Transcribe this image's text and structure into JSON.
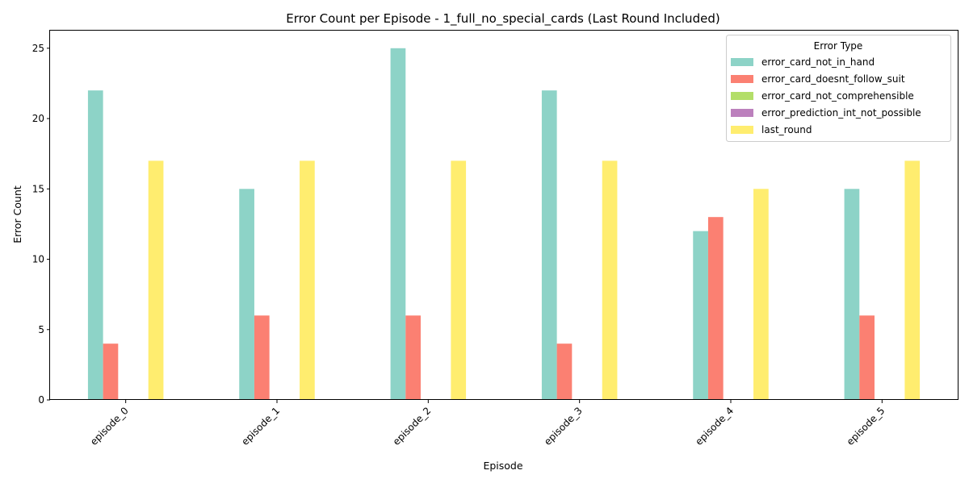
{
  "chart_data": {
    "type": "bar",
    "title": "Error Count per Episode - 1_full_no_special_cards (Last Round Included)",
    "xlabel": "Episode",
    "ylabel": "Error Count",
    "ylim": [
      0,
      26.25
    ],
    "yticks": [
      0,
      5,
      10,
      15,
      20,
      25
    ],
    "grid": false,
    "legend_title": "Error Type",
    "legend_position": "top-right",
    "categories": [
      "episode_0",
      "episode_1",
      "episode_2",
      "episode_3",
      "episode_4",
      "episode_5"
    ],
    "series": [
      {
        "name": "error_card_not_in_hand",
        "color": "#8dd3c7",
        "values": [
          22,
          15,
          25,
          22,
          12,
          15
        ]
      },
      {
        "name": "error_card_doesnt_follow_suit",
        "color": "#fb8072",
        "values": [
          4,
          6,
          6,
          4,
          13,
          6
        ]
      },
      {
        "name": "error_card_not_comprehensible",
        "color": "#b3de69",
        "values": [
          0,
          0,
          0,
          0,
          0,
          0
        ]
      },
      {
        "name": "error_prediction_int_not_possible",
        "color": "#bc80bd",
        "values": [
          0,
          0,
          0,
          0,
          0,
          0
        ]
      },
      {
        "name": "last_round",
        "color": "#ffed6f",
        "values": [
          17,
          17,
          17,
          17,
          15,
          17
        ]
      }
    ]
  }
}
